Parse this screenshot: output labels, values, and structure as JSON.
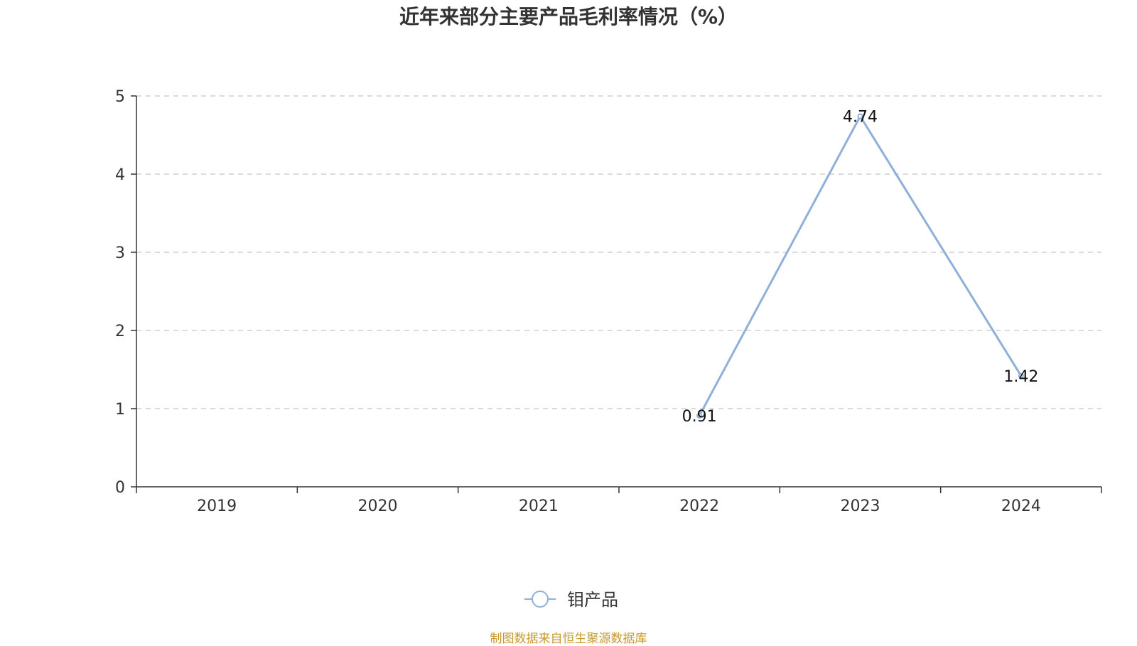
{
  "chart_data": {
    "type": "line",
    "title": "近年来部分主要产品毛利率情况（%）",
    "xlabel": "",
    "ylabel": "",
    "categories": [
      "2019",
      "2020",
      "2021",
      "2022",
      "2023",
      "2024"
    ],
    "series": [
      {
        "name": "钼产品",
        "values": [
          null,
          null,
          null,
          0.91,
          4.74,
          1.42
        ],
        "labels": [
          "",
          "",
          "",
          "0.91",
          "4.74",
          "1.42"
        ],
        "color": "#8eb0d9"
      }
    ],
    "ylim": [
      0,
      5
    ],
    "yticks": [
      0,
      1,
      2,
      3,
      4,
      5
    ],
    "grid": true,
    "legend_position": "bottom-center"
  },
  "footer": {
    "source": "制图数据来自恒生聚源数据库"
  }
}
